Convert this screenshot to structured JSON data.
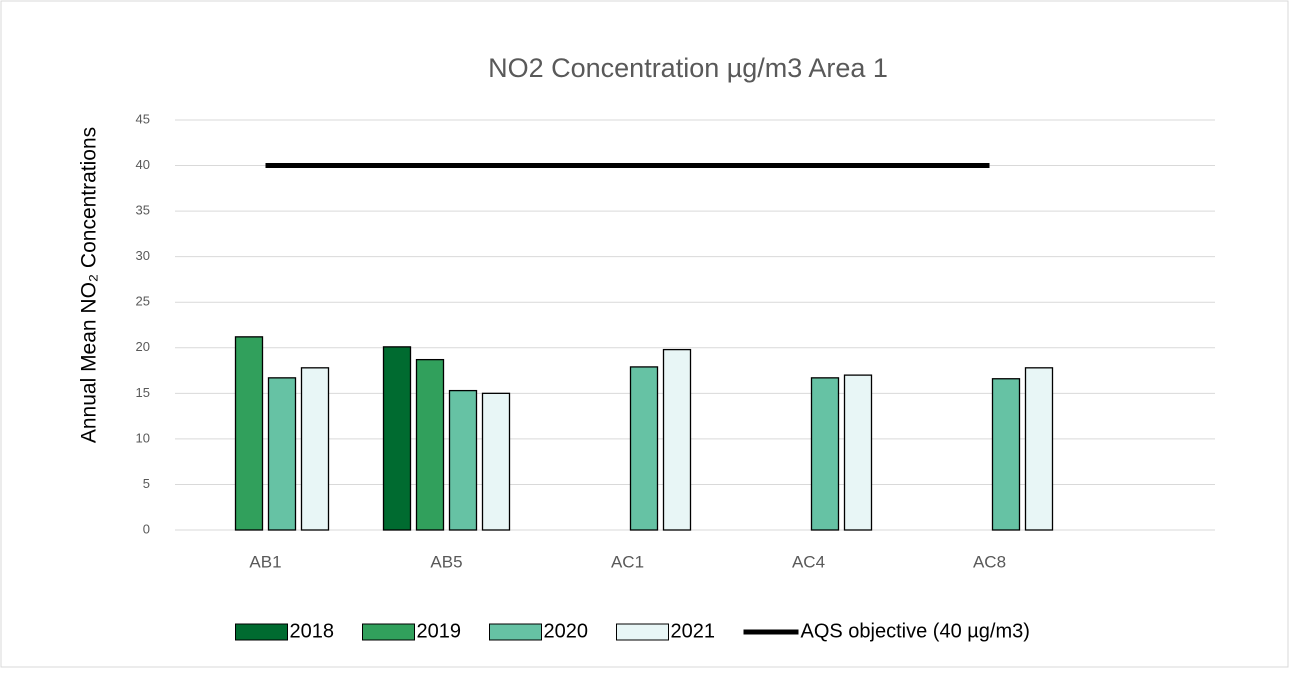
{
  "chart_data": {
    "type": "bar",
    "title": "NO2 Concentration µg/m3 Area 1",
    "y_label": "Annual Mean NO₂ Concentrations",
    "categories": [
      "AB1",
      "AB5",
      "AC1",
      "AC4",
      "AC8"
    ],
    "series": [
      {
        "name": "2018",
        "color": "#006b30",
        "values": [
          null,
          20.1,
          null,
          null,
          null
        ]
      },
      {
        "name": "2019",
        "color": "#31a05c",
        "values": [
          21.2,
          18.7,
          null,
          null,
          null
        ]
      },
      {
        "name": "2020",
        "color": "#66c2a4",
        "values": [
          16.7,
          15.3,
          17.9,
          16.7,
          16.6
        ]
      },
      {
        "name": "2021",
        "color": "#e8f6f6",
        "values": [
          17.8,
          15.0,
          19.8,
          17.0,
          17.8
        ]
      },
      {
        "name": "AQS objective (40 µg/m3)",
        "type": "line",
        "color": "#000000",
        "values": [
          40,
          40,
          40,
          40,
          40
        ]
      }
    ],
    "ylim": [
      0,
      45
    ],
    "yticks": [
      0,
      5,
      10,
      15,
      20,
      25,
      30,
      35,
      40,
      45
    ],
    "grid": true
  }
}
